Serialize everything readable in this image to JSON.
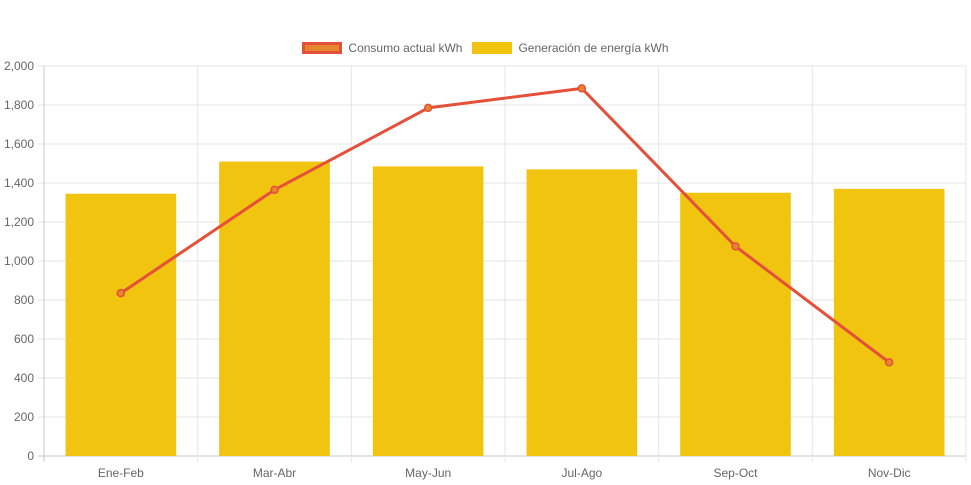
{
  "chart_data": {
    "type": "bar",
    "categories": [
      "Ene-Feb",
      "Mar-Abr",
      "May-Jun",
      "Jul-Ago",
      "Sep-Oct",
      "Nov-Dic"
    ],
    "series": [
      {
        "name": "Consumo actual kWh",
        "type": "line",
        "values": [
          835,
          1365,
          1785,
          1885,
          1075,
          480
        ],
        "color": "#e4503a",
        "fill": "#e5862e"
      },
      {
        "name": "Generación de energía kWh",
        "type": "bar",
        "values": [
          1345,
          1510,
          1485,
          1470,
          1350,
          1370
        ],
        "color": "#f1c40f"
      }
    ],
    "ylim": [
      0,
      2000
    ],
    "yticks": [
      "0",
      "200",
      "400",
      "600",
      "800",
      "1,000",
      "1,200",
      "1,400",
      "1,600",
      "1,800",
      "2,000"
    ],
    "grid": true,
    "legend": "top"
  }
}
